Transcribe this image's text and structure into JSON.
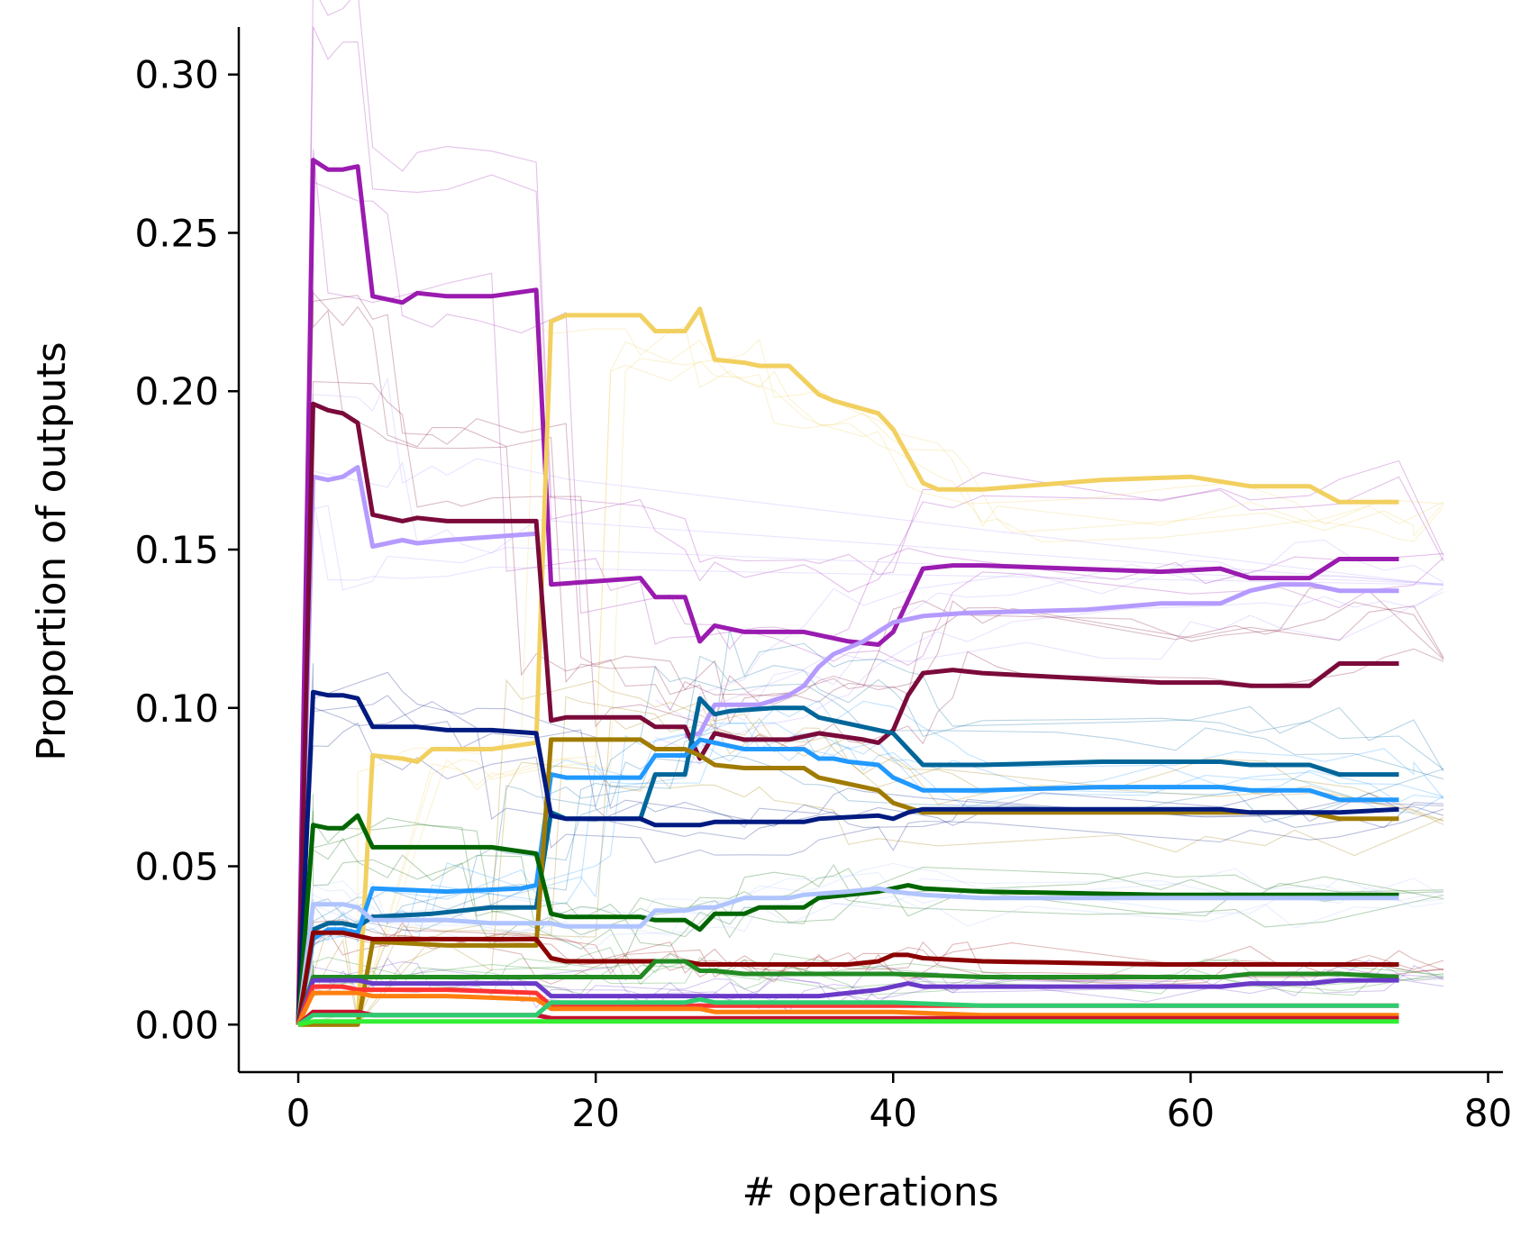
{
  "chart_data": {
    "type": "line",
    "title": "",
    "xlabel": "# operations",
    "ylabel": "Proportion of outputs",
    "xlim": [
      -4,
      81
    ],
    "ylim": [
      -0.015,
      0.315
    ],
    "x_ticks": [
      "0",
      "20",
      "40",
      "60",
      "80"
    ],
    "x_tick_values": [
      0,
      20,
      40,
      60,
      80
    ],
    "y_ticks": [
      "0.00",
      "0.05",
      "0.10",
      "0.15",
      "0.20",
      "0.25",
      "0.30"
    ],
    "y_tick_values": [
      0.0,
      0.05,
      0.1,
      0.15,
      0.2,
      0.25,
      0.3
    ],
    "grid": false,
    "legend": "none",
    "background_runs": {
      "description_free": true,
      "x_end": 77,
      "groups": [
        {
          "color": "#9a1bb0",
          "final": 0.148
        },
        {
          "color": "#f2d060",
          "final": 0.165
        },
        {
          "color": "#b59aff",
          "final": 0.138
        },
        {
          "color": "#7a0a3a",
          "final": 0.114
        },
        {
          "color": "#006699",
          "final": 0.079
        },
        {
          "color": "#2299ff",
          "final": 0.071
        },
        {
          "color": "#a07b00",
          "final": 0.065
        },
        {
          "color": "#001a80",
          "final": 0.068
        },
        {
          "color": "#006600",
          "final": 0.041
        },
        {
          "color": "#b0c4ff",
          "final": 0.04
        },
        {
          "color": "#8b0000",
          "final": 0.019
        },
        {
          "color": "#228b22",
          "final": 0.015
        },
        {
          "color": "#6a3ac8",
          "final": 0.014
        }
      ]
    },
    "series": [
      {
        "color": "#9a1bb0",
        "x": [
          0,
          1,
          2,
          3,
          4,
          5,
          7,
          8,
          10,
          13,
          16,
          17,
          23,
          24,
          26,
          27,
          28,
          30,
          34,
          35,
          37,
          39,
          40,
          42,
          44,
          46,
          58,
          62,
          64,
          68,
          70,
          74
        ],
        "y": [
          0,
          0.273,
          0.27,
          0.27,
          0.271,
          0.23,
          0.228,
          0.231,
          0.23,
          0.23,
          0.232,
          0.139,
          0.141,
          0.135,
          0.135,
          0.121,
          0.126,
          0.124,
          0.124,
          0.123,
          0.121,
          0.12,
          0.124,
          0.144,
          0.145,
          0.145,
          0.143,
          0.144,
          0.141,
          0.141,
          0.147,
          0.147
        ]
      },
      {
        "color": "#f2d060",
        "x": [
          0,
          4,
          5,
          7,
          8,
          9,
          13,
          16,
          17,
          18,
          21,
          23,
          24,
          26,
          27,
          28,
          30,
          31,
          33,
          35,
          36,
          39,
          40,
          42,
          43,
          46,
          54,
          60,
          64,
          68,
          70,
          74
        ],
        "y": [
          0,
          0,
          0.085,
          0.084,
          0.083,
          0.087,
          0.087,
          0.089,
          0.222,
          0.224,
          0.224,
          0.224,
          0.219,
          0.219,
          0.226,
          0.21,
          0.209,
          0.208,
          0.208,
          0.199,
          0.197,
          0.193,
          0.188,
          0.171,
          0.169,
          0.169,
          0.172,
          0.173,
          0.17,
          0.17,
          0.165,
          0.165
        ]
      },
      {
        "color": "#b59aff",
        "x": [
          0,
          1,
          2,
          3,
          4,
          5,
          7,
          8,
          10,
          13,
          16
        ],
        "y": [
          0,
          0.173,
          0.172,
          0.173,
          0.176,
          0.151,
          0.153,
          0.152,
          0.153,
          0.154,
          0.155
        ]
      },
      {
        "color": "#b59aff",
        "x": [
          26,
          27,
          28,
          31,
          33,
          34,
          35,
          36,
          38,
          40,
          42,
          45,
          53,
          58,
          62,
          64,
          66,
          68,
          70,
          74
        ],
        "y": [
          0.091,
          0.092,
          0.101,
          0.101,
          0.104,
          0.107,
          0.113,
          0.117,
          0.121,
          0.127,
          0.129,
          0.13,
          0.131,
          0.133,
          0.133,
          0.137,
          0.139,
          0.139,
          0.137,
          0.137
        ]
      },
      {
        "color": "#7a0a3a",
        "x": [
          0,
          1,
          2,
          3,
          4,
          5,
          7,
          8,
          10,
          13,
          16,
          17,
          18,
          20,
          23,
          24,
          26,
          27,
          28,
          30,
          31,
          33,
          34,
          35,
          38,
          39,
          40,
          41,
          42,
          44,
          46,
          58,
          62,
          64,
          68,
          70,
          74
        ],
        "y": [
          0,
          0.196,
          0.194,
          0.193,
          0.19,
          0.161,
          0.159,
          0.16,
          0.159,
          0.159,
          0.159,
          0.096,
          0.097,
          0.097,
          0.097,
          0.094,
          0.094,
          0.084,
          0.092,
          0.09,
          0.09,
          0.09,
          0.091,
          0.092,
          0.09,
          0.089,
          0.093,
          0.104,
          0.111,
          0.112,
          0.111,
          0.108,
          0.108,
          0.107,
          0.107,
          0.114,
          0.114
        ]
      },
      {
        "color": "#006699",
        "x": [
          0,
          1,
          2,
          3,
          4,
          5,
          9,
          13,
          16,
          17,
          18,
          19,
          23,
          24,
          26,
          27,
          28,
          29,
          32,
          34,
          35,
          37,
          39,
          40,
          41,
          42,
          46,
          54,
          58,
          62,
          64,
          68,
          70,
          74
        ],
        "y": [
          0,
          0.03,
          0.032,
          0.032,
          0.031,
          0.034,
          0.035,
          0.037,
          0.037,
          0.067,
          0.065,
          0.065,
          0.065,
          0.079,
          0.079,
          0.103,
          0.098,
          0.099,
          0.1,
          0.1,
          0.097,
          0.095,
          0.093,
          0.092,
          0.087,
          0.082,
          0.082,
          0.083,
          0.083,
          0.083,
          0.082,
          0.082,
          0.079,
          0.079
        ]
      },
      {
        "color": "#2299ff",
        "x": [
          0,
          1,
          2,
          3,
          4,
          5,
          10,
          15,
          16,
          17,
          18,
          23,
          24,
          26,
          27,
          28,
          30,
          31,
          33,
          34,
          35,
          36,
          37,
          39,
          40,
          42,
          46,
          54,
          58,
          62,
          64,
          68,
          70,
          74
        ],
        "y": [
          0,
          0.027,
          0.03,
          0.03,
          0.029,
          0.043,
          0.042,
          0.043,
          0.044,
          0.079,
          0.078,
          0.078,
          0.085,
          0.085,
          0.09,
          0.089,
          0.087,
          0.087,
          0.087,
          0.087,
          0.084,
          0.084,
          0.083,
          0.082,
          0.078,
          0.074,
          0.074,
          0.075,
          0.075,
          0.075,
          0.074,
          0.074,
          0.071,
          0.071
        ]
      },
      {
        "color": "#a07b00",
        "x": [
          0,
          4,
          5,
          6,
          10,
          13,
          16,
          17,
          18,
          23,
          24,
          26,
          27,
          28,
          30,
          31,
          33,
          34,
          35,
          37,
          39,
          40,
          42,
          46,
          58,
          62,
          64,
          68,
          70,
          74
        ],
        "y": [
          0,
          0,
          0.026,
          0.026,
          0.025,
          0.025,
          0.025,
          0.09,
          0.09,
          0.09,
          0.087,
          0.087,
          0.085,
          0.082,
          0.081,
          0.081,
          0.081,
          0.081,
          0.078,
          0.076,
          0.074,
          0.07,
          0.067,
          0.067,
          0.067,
          0.067,
          0.067,
          0.067,
          0.065,
          0.065
        ]
      },
      {
        "color": "#001a80",
        "x": [
          0,
          1,
          2,
          3,
          4,
          5,
          7,
          8,
          10,
          13,
          16,
          17,
          18,
          23,
          24,
          27,
          28,
          30,
          33,
          34,
          35,
          39,
          40,
          41,
          42,
          46,
          58,
          62,
          64,
          68,
          70,
          74
        ],
        "y": [
          0,
          0.105,
          0.104,
          0.104,
          0.103,
          0.094,
          0.094,
          0.094,
          0.093,
          0.093,
          0.092,
          0.066,
          0.065,
          0.065,
          0.063,
          0.063,
          0.064,
          0.064,
          0.064,
          0.064,
          0.065,
          0.066,
          0.065,
          0.067,
          0.068,
          0.068,
          0.068,
          0.068,
          0.067,
          0.067,
          0.067,
          0.068
        ]
      },
      {
        "color": "#006600",
        "x": [
          0,
          1,
          2,
          3,
          4,
          5,
          7,
          8,
          10,
          13,
          16,
          17,
          18,
          20,
          23,
          24,
          26,
          27,
          28,
          30,
          31,
          33,
          34,
          35,
          37,
          39,
          40,
          41,
          42,
          46,
          58,
          62,
          64,
          68,
          70,
          74
        ],
        "y": [
          0,
          0.063,
          0.062,
          0.062,
          0.066,
          0.056,
          0.056,
          0.056,
          0.056,
          0.056,
          0.054,
          0.035,
          0.034,
          0.034,
          0.034,
          0.033,
          0.033,
          0.03,
          0.035,
          0.035,
          0.037,
          0.037,
          0.037,
          0.04,
          0.041,
          0.042,
          0.043,
          0.044,
          0.043,
          0.042,
          0.041,
          0.041,
          0.041,
          0.041,
          0.041,
          0.041
        ]
      },
      {
        "color": "#b0c4ff",
        "x": [
          0,
          1,
          2,
          3,
          4,
          5,
          10,
          13,
          16,
          17,
          18,
          23,
          24,
          26,
          27,
          28,
          30,
          33,
          34,
          37,
          39,
          40,
          42,
          46,
          58,
          62,
          64,
          68,
          70,
          74
        ],
        "y": [
          0,
          0.038,
          0.038,
          0.038,
          0.037,
          0.033,
          0.033,
          0.032,
          0.032,
          0.032,
          0.031,
          0.031,
          0.036,
          0.036,
          0.037,
          0.037,
          0.04,
          0.04,
          0.041,
          0.042,
          0.043,
          0.042,
          0.041,
          0.04,
          0.04,
          0.04,
          0.04,
          0.04,
          0.04,
          0.04
        ]
      },
      {
        "color": "#8b0000",
        "x": [
          0,
          1,
          2,
          3,
          4,
          5,
          10,
          16,
          17,
          18,
          23,
          24,
          26,
          27,
          28,
          30,
          33,
          34,
          35,
          37,
          39,
          40,
          41,
          42,
          46,
          58,
          62,
          64,
          68,
          70,
          74
        ],
        "y": [
          0,
          0.029,
          0.029,
          0.029,
          0.028,
          0.027,
          0.027,
          0.027,
          0.021,
          0.02,
          0.02,
          0.02,
          0.02,
          0.019,
          0.019,
          0.019,
          0.019,
          0.019,
          0.019,
          0.019,
          0.02,
          0.022,
          0.022,
          0.021,
          0.02,
          0.019,
          0.019,
          0.019,
          0.019,
          0.019,
          0.019
        ]
      },
      {
        "color": "#228b22",
        "x": [
          0,
          1,
          2,
          3,
          4,
          5,
          10,
          16,
          17,
          18,
          23,
          24,
          26,
          27,
          28,
          30,
          34,
          35,
          40,
          46,
          58,
          62,
          64,
          68,
          70,
          74
        ],
        "y": [
          0,
          0.015,
          0.015,
          0.015,
          0.015,
          0.015,
          0.015,
          0.015,
          0.015,
          0.015,
          0.015,
          0.02,
          0.02,
          0.017,
          0.017,
          0.016,
          0.016,
          0.016,
          0.016,
          0.015,
          0.015,
          0.015,
          0.016,
          0.016,
          0.016,
          0.015
        ]
      },
      {
        "color": "#6a3ac8",
        "x": [
          0,
          1,
          2,
          3,
          4,
          5,
          10,
          16,
          17,
          18,
          23,
          24,
          26,
          27,
          28,
          30,
          33,
          34,
          35,
          37,
          39,
          40,
          41,
          42,
          46,
          58,
          62,
          64,
          68,
          70,
          74
        ],
        "y": [
          0,
          0.014,
          0.014,
          0.014,
          0.014,
          0.013,
          0.013,
          0.013,
          0.009,
          0.009,
          0.009,
          0.009,
          0.009,
          0.009,
          0.009,
          0.009,
          0.009,
          0.009,
          0.009,
          0.01,
          0.011,
          0.012,
          0.013,
          0.012,
          0.012,
          0.012,
          0.012,
          0.013,
          0.013,
          0.014,
          0.014
        ]
      },
      {
        "color": "#ff3333",
        "x": [
          0,
          1,
          2,
          3,
          4,
          5,
          10,
          16,
          17,
          18,
          23,
          24,
          26,
          27,
          28,
          30,
          40,
          46,
          58,
          62,
          64,
          68,
          70,
          74
        ],
        "y": [
          0,
          0.012,
          0.012,
          0.012,
          0.011,
          0.011,
          0.011,
          0.01,
          0.006,
          0.006,
          0.006,
          0.006,
          0.006,
          0.006,
          0.006,
          0.006,
          0.006,
          0.006,
          0.006,
          0.006,
          0.006,
          0.006,
          0.006,
          0.006
        ]
      },
      {
        "color": "#ff7f0e",
        "x": [
          0,
          1,
          2,
          3,
          4,
          5,
          10,
          16,
          17,
          18,
          23,
          24,
          26,
          27,
          28,
          30,
          40,
          46,
          58,
          62,
          64,
          68,
          70,
          74
        ],
        "y": [
          0,
          0.01,
          0.01,
          0.01,
          0.01,
          0.009,
          0.009,
          0.008,
          0.005,
          0.005,
          0.005,
          0.005,
          0.005,
          0.005,
          0.004,
          0.004,
          0.004,
          0.003,
          0.003,
          0.003,
          0.003,
          0.003,
          0.003,
          0.003
        ]
      },
      {
        "color": "#c8102e",
        "x": [
          0,
          1,
          2,
          4,
          5,
          10,
          16,
          17,
          30,
          46,
          74
        ],
        "y": [
          0,
          0.004,
          0.004,
          0.004,
          0.003,
          0.003,
          0.003,
          0.002,
          0.002,
          0.002,
          0.002
        ]
      },
      {
        "color": "#2ecc71",
        "x": [
          0,
          1,
          4,
          5,
          10,
          16,
          17,
          18,
          23,
          24,
          26,
          27,
          28,
          30,
          40,
          46,
          58,
          62,
          64,
          68,
          70,
          74
        ],
        "y": [
          0,
          0.003,
          0.003,
          0.003,
          0.003,
          0.003,
          0.007,
          0.007,
          0.007,
          0.007,
          0.007,
          0.008,
          0.007,
          0.007,
          0.007,
          0.006,
          0.006,
          0.006,
          0.006,
          0.006,
          0.006,
          0.006
        ]
      },
      {
        "color": "#33ee33",
        "x": [
          0,
          1,
          10,
          16,
          17,
          30,
          46,
          74
        ],
        "y": [
          0,
          0.001,
          0.001,
          0.001,
          0.001,
          0.001,
          0.001,
          0.001
        ]
      }
    ]
  }
}
